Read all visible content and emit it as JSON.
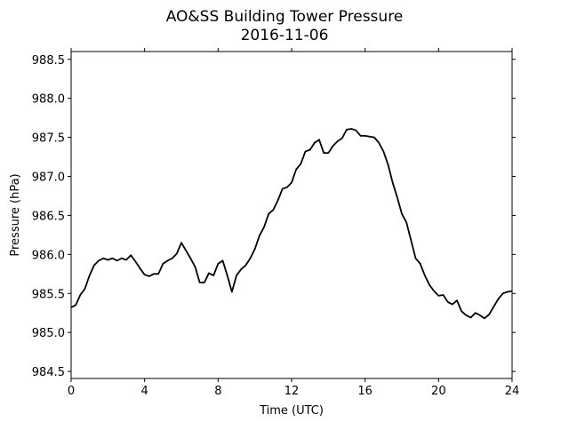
{
  "chart_data": {
    "type": "line",
    "title": "AO&SS Building Tower Pressure",
    "subtitle": "2016-11-06",
    "x_label": "Time (UTC)",
    "y_label": "Pressure (hPa)",
    "xlim": [
      0,
      24
    ],
    "xticks": [
      0,
      4,
      8,
      12,
      16,
      20,
      24
    ],
    "ylim": [
      984.41,
      988.6
    ],
    "yticks": [
      {
        "value": 984.5,
        "label": "984.5"
      },
      {
        "value": 985.0,
        "label": "985.0"
      },
      {
        "value": 985.5,
        "label": "985.5"
      },
      {
        "value": 986.0,
        "label": "986.0"
      },
      {
        "value": 986.5,
        "label": "986.5"
      },
      {
        "value": 987.0,
        "label": "987.0"
      },
      {
        "value": 987.5,
        "label": "987.5"
      },
      {
        "value": 988.0,
        "label": "988.0"
      },
      {
        "value": 988.5,
        "label": "988.5"
      }
    ],
    "x": [
      0,
      0.25,
      0.5,
      0.75,
      1,
      1.25,
      1.5,
      1.75,
      2,
      2.25,
      2.5,
      2.75,
      3,
      3.25,
      3.5,
      3.75,
      4,
      4.25,
      4.5,
      4.75,
      5,
      5.25,
      5.5,
      5.75,
      6,
      6.25,
      6.5,
      6.75,
      7,
      7.25,
      7.5,
      7.75,
      8,
      8.25,
      8.5,
      8.75,
      9,
      9.25,
      9.5,
      9.75,
      10,
      10.25,
      10.5,
      10.75,
      11,
      11.25,
      11.5,
      11.75,
      12,
      12.25,
      12.5,
      12.75,
      13,
      13.25,
      13.5,
      13.75,
      14,
      14.25,
      14.5,
      14.75,
      15,
      15.25,
      15.5,
      15.75,
      16,
      16.25,
      16.5,
      16.75,
      17,
      17.25,
      17.5,
      17.75,
      18,
      18.25,
      18.5,
      18.75,
      19,
      19.25,
      19.5,
      19.75,
      20,
      20.25,
      20.5,
      20.75,
      21,
      21.25,
      21.5,
      21.75,
      22,
      22.25,
      22.5,
      22.75,
      23,
      23.25,
      23.5,
      23.75,
      24
    ],
    "series": [
      {
        "color": "#000000",
        "values": [
          985.32,
          985.35,
          985.48,
          985.56,
          985.73,
          985.86,
          985.92,
          985.95,
          985.93,
          985.95,
          985.92,
          985.95,
          985.93,
          985.99,
          985.91,
          985.82,
          985.74,
          985.72,
          985.75,
          985.75,
          985.88,
          985.92,
          985.95,
          986.01,
          986.15,
          986.05,
          985.95,
          985.84,
          985.64,
          985.64,
          985.76,
          985.73,
          985.88,
          985.92,
          985.73,
          985.52,
          985.73,
          985.81,
          985.86,
          985.95,
          986.07,
          986.24,
          986.35,
          986.52,
          986.57,
          986.69,
          986.84,
          986.86,
          986.92,
          987.09,
          987.16,
          987.32,
          987.34,
          987.43,
          987.47,
          987.3,
          987.3,
          987.39,
          987.45,
          987.49,
          987.6,
          987.61,
          987.59,
          987.52,
          987.52,
          987.51,
          987.5,
          987.43,
          987.32,
          987.15,
          986.92,
          986.73,
          986.52,
          986.41,
          986.18,
          985.95,
          985.88,
          985.73,
          985.61,
          985.53,
          985.47,
          985.48,
          985.39,
          985.36,
          985.41,
          985.27,
          985.22,
          985.19,
          985.25,
          985.22,
          985.18,
          985.23,
          985.33,
          985.43,
          985.5,
          985.52,
          985.53
        ]
      }
    ]
  }
}
